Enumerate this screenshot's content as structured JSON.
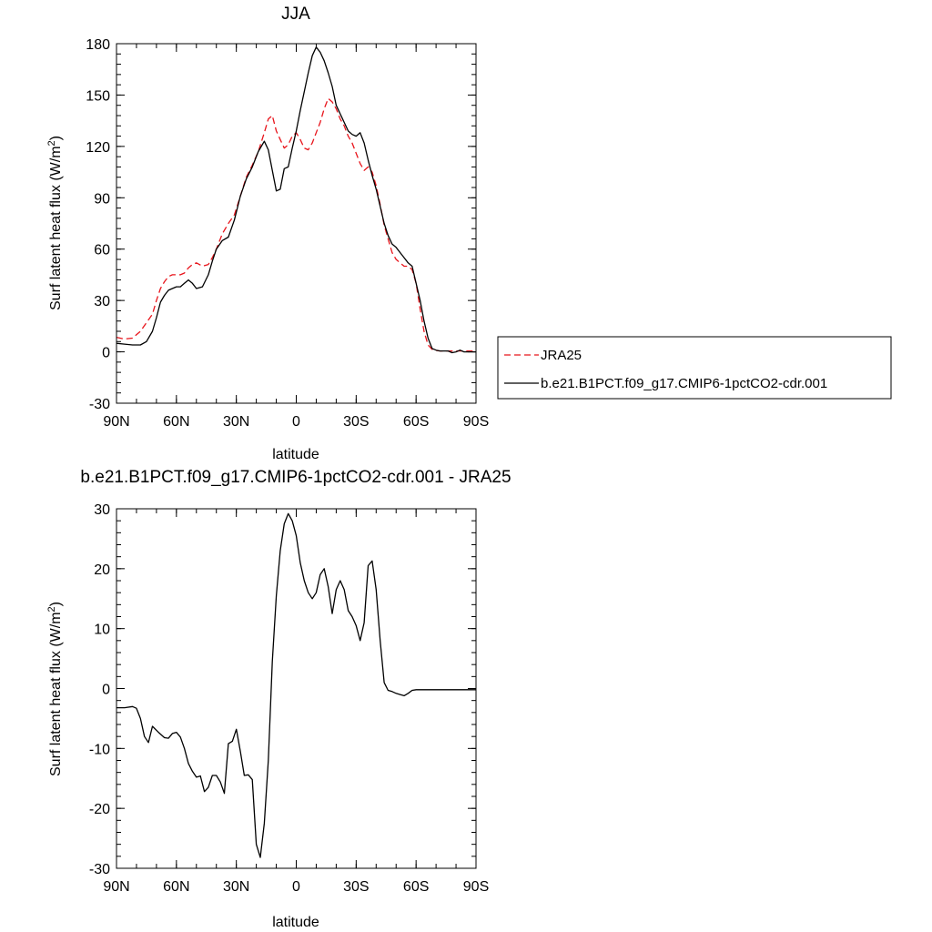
{
  "chart_data": [
    {
      "type": "line",
      "title": "JJA",
      "xlabel": "latitude",
      "ylabel": "Surf latent heat flux (W/m",
      "ylabel_sup": "2",
      "ylabel_close": ")",
      "xlim": [
        -90,
        90
      ],
      "ylim": [
        -30,
        180
      ],
      "yticks": [
        180,
        150,
        120,
        90,
        60,
        30,
        0,
        -30
      ],
      "xticks": [
        -90,
        -60,
        -30,
        0,
        30,
        60,
        90
      ],
      "xticklabels": [
        "90N",
        "60N",
        "30N",
        "0",
        "30S",
        "60S",
        "90S"
      ],
      "legend_position": "right",
      "series": [
        {
          "name": "JRA25",
          "color": "#e8141b",
          "dash": "dashed",
          "x": [
            -90,
            -86,
            -82,
            -78,
            -75,
            -72,
            -70,
            -68,
            -66,
            -64,
            -62,
            -60,
            -58,
            -56,
            -54,
            -52,
            -50,
            -47,
            -44,
            -42,
            -40,
            -37,
            -34,
            -31,
            -28,
            -25,
            -22,
            -19,
            -16,
            -14,
            -12,
            -10,
            -8,
            -6,
            -4,
            -2,
            0,
            2,
            4,
            6,
            8,
            10,
            12,
            14,
            16,
            18,
            20,
            22,
            24,
            26,
            28,
            30,
            32,
            34,
            36,
            38,
            40,
            42,
            44,
            46,
            48,
            50,
            52,
            54,
            56,
            58,
            60,
            62,
            64,
            66,
            68,
            70,
            72,
            74,
            76,
            78,
            80,
            82,
            84,
            86,
            88,
            90
          ],
          "values": [
            8.5,
            7.5,
            8,
            12,
            17,
            22,
            30,
            37,
            41,
            44,
            45,
            45,
            45,
            46,
            49,
            51,
            52,
            50,
            51,
            55,
            60,
            69,
            75,
            80,
            91,
            102,
            109,
            117,
            128,
            136,
            138,
            129,
            124,
            119,
            121,
            126,
            128,
            124,
            119,
            118,
            122,
            128,
            134,
            142,
            148,
            146,
            142,
            136,
            132,
            126,
            122,
            116,
            110,
            106,
            108,
            105,
            97,
            86,
            74,
            66,
            58,
            54,
            52,
            50,
            50,
            48,
            40,
            25,
            12,
            4,
            1.5,
            0.8,
            0.5,
            0.5,
            0.5,
            0.5,
            0.5,
            0.5,
            0.5,
            0.5,
            0.5,
            0.5
          ]
        },
        {
          "name": "b.e21.B1PCT.f09_g17.CMIP6-1pctCO2-cdr.001",
          "color": "#000000",
          "dash": "solid",
          "x": [
            -90,
            -86,
            -82,
            -78,
            -75,
            -72,
            -70,
            -68,
            -66,
            -64,
            -62,
            -60,
            -58,
            -56,
            -54,
            -52,
            -50,
            -47,
            -44,
            -42,
            -40,
            -37,
            -34,
            -31,
            -28,
            -25,
            -22,
            -19,
            -16,
            -14,
            -12,
            -10,
            -8,
            -6,
            -4,
            -2,
            0,
            2,
            4,
            6,
            8,
            10,
            12,
            14,
            16,
            18,
            20,
            22,
            24,
            26,
            28,
            30,
            32,
            34,
            36,
            38,
            40,
            42,
            44,
            46,
            48,
            50,
            52,
            54,
            56,
            58,
            60,
            62,
            64,
            66,
            68,
            70,
            72,
            74,
            76,
            78,
            80,
            82,
            84,
            86,
            88,
            90
          ],
          "values": [
            5,
            4.5,
            4,
            4,
            6,
            12,
            20,
            29,
            33,
            36,
            37,
            38,
            38,
            40,
            42,
            40,
            37,
            38,
            45,
            53,
            60,
            65,
            67,
            77,
            91,
            101,
            108,
            117,
            123,
            118,
            106,
            94,
            95,
            107,
            108,
            119,
            129,
            141,
            152,
            163,
            173,
            178,
            175,
            170,
            163,
            155,
            144,
            139,
            134,
            129,
            127,
            126,
            128,
            122,
            112,
            103,
            95,
            85,
            75,
            68,
            63,
            61,
            58,
            55,
            52,
            50,
            40,
            30,
            18,
            8,
            2,
            1,
            0.5,
            0.5,
            0.5,
            -0.5,
            0,
            1,
            0,
            0,
            0,
            0
          ]
        }
      ]
    },
    {
      "type": "line",
      "title": "b.e21.B1PCT.f09_g17.CMIP6-1pctCO2-cdr.001 - JRA25",
      "xlabel": "latitude",
      "ylabel": "Surf latent heat flux (W/m",
      "ylabel_sup": "2",
      "ylabel_close": ")",
      "xlim": [
        -90,
        90
      ],
      "ylim": [
        -30,
        30
      ],
      "yticks": [
        30,
        20,
        10,
        0,
        -10,
        -20,
        -30
      ],
      "xticks": [
        -90,
        -60,
        -30,
        0,
        30,
        60,
        90
      ],
      "xticklabels": [
        "90N",
        "60N",
        "30N",
        "0",
        "30S",
        "60S",
        "90S"
      ],
      "series": [
        {
          "color": "#000000",
          "dash": "solid",
          "x": [
            -90,
            -86,
            -82,
            -80,
            -78,
            -76,
            -74,
            -72,
            -69,
            -66,
            -64,
            -62,
            -60,
            -58,
            -56,
            -54,
            -52,
            -50,
            -48,
            -46,
            -44,
            -42,
            -40,
            -38,
            -36,
            -34,
            -32,
            -30,
            -28,
            -26,
            -24,
            -22,
            -20,
            -18,
            -16,
            -14,
            -12,
            -10,
            -8,
            -6,
            -4,
            -2,
            0,
            2,
            4,
            6,
            8,
            10,
            12,
            14,
            16,
            18,
            20,
            22,
            24,
            26,
            28,
            30,
            32,
            34,
            36,
            38,
            40,
            42,
            44,
            46,
            48,
            50,
            52,
            54,
            56,
            58,
            60,
            62,
            64,
            66,
            68,
            70,
            72,
            74,
            76,
            78,
            80,
            82,
            84,
            86,
            88,
            90
          ],
          "values": [
            -3.2,
            -3.2,
            -3,
            -3.3,
            -5,
            -8,
            -9,
            -6.3,
            -7.3,
            -8.2,
            -8.3,
            -7.5,
            -7.3,
            -8.1,
            -10,
            -12.5,
            -13.8,
            -14.8,
            -14.6,
            -17.2,
            -16.5,
            -14.5,
            -14.5,
            -15.6,
            -17.5,
            -9.2,
            -8.8,
            -6.8,
            -10.5,
            -14.5,
            -14.4,
            -15.2,
            -26,
            -28.2,
            -22.5,
            -12,
            4.5,
            15.5,
            23,
            27.5,
            29.2,
            28,
            25.5,
            21,
            18,
            16,
            15,
            16,
            19,
            20,
            17,
            12.5,
            16.5,
            18,
            16.5,
            13,
            12,
            10.5,
            8,
            11,
            20.5,
            21.3,
            16.5,
            8,
            1,
            -0.3,
            -0.5,
            -0.8,
            -1,
            -1.2,
            -0.8,
            -0.3,
            -0.2,
            -0.2,
            -0.2,
            -0.2,
            -0.2,
            -0.2,
            -0.2,
            -0.2,
            -0.2,
            -0.2,
            -0.2,
            -0.2,
            -0.2,
            -0.2,
            -0.2,
            -0.2
          ]
        }
      ]
    }
  ]
}
